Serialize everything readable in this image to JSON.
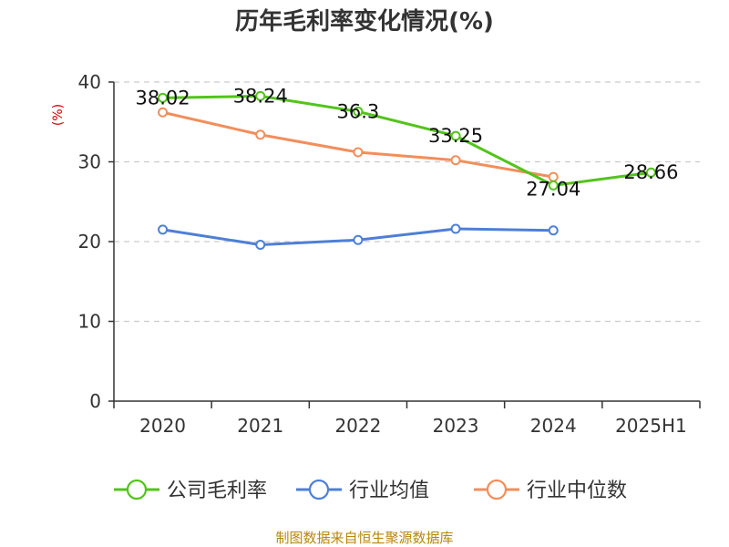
{
  "chart_data": {
    "type": "line",
    "title": "历年毛利率变化情况(%)",
    "ylabel": "(%)",
    "xlabel": "",
    "categories": [
      "2020",
      "2021",
      "2022",
      "2023",
      "2024",
      "2025H1"
    ],
    "ylim": [
      0,
      40
    ],
    "yticks": [
      0,
      10,
      20,
      30,
      40
    ],
    "grid": true,
    "legend_position": "bottom",
    "series": [
      {
        "name": "公司毛利率",
        "color": "#52c41a",
        "values": [
          38.02,
          38.24,
          36.3,
          33.25,
          27.04,
          28.66
        ],
        "labels": [
          "38.02",
          "38.24",
          "36.3",
          "33.25",
          "27.04",
          "28.66"
        ]
      },
      {
        "name": "行业均值",
        "color": "#4e7fd6",
        "values": [
          21.5,
          19.6,
          20.2,
          21.6,
          21.4,
          null
        ],
        "labels": []
      },
      {
        "name": "行业中位数",
        "color": "#f28e5b",
        "values": [
          36.2,
          33.4,
          31.2,
          30.2,
          28.1,
          null
        ],
        "labels": []
      }
    ]
  },
  "footer": {
    "source": "制图数据来自恒生聚源数据库"
  }
}
